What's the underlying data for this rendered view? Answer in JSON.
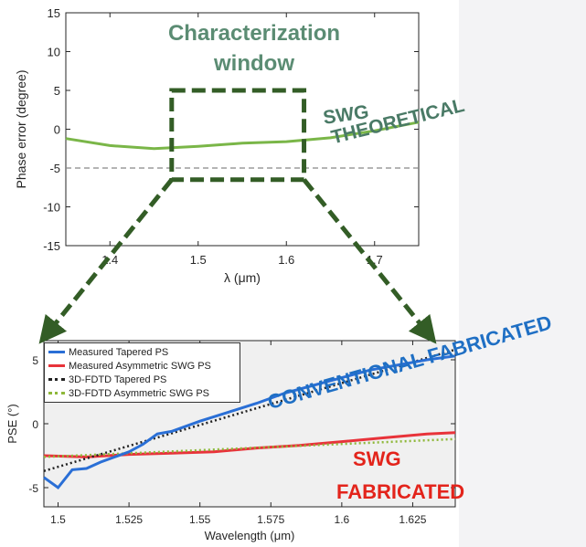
{
  "colors": {
    "theoretical": "#7ab648",
    "tapered_measured": "#2a6fd6",
    "asym_measured": "#e8333a",
    "tapered_fdtd": "#222222",
    "asym_fdtd": "#8fb83a",
    "window_box": "#335d26",
    "window_label": "#5b8c73",
    "swg_theoretical": "#4a7a66",
    "conventional_fabricated": "#1f6fc4",
    "swg_fabricated": "#e3241b"
  },
  "annotations": {
    "window_label_1": "Characterization",
    "window_label_2": "window",
    "swg_theoretical_1": "SWG",
    "swg_theoretical_2": "THEORETICAL",
    "conventional_fabricated": "CONVENTIONAL FABRICATED",
    "swg_fabricated_1": "SWG",
    "swg_fabricated_2": "FABRICATED"
  },
  "chart_data": [
    {
      "type": "line",
      "xlabel": "λ (μm)",
      "ylabel": "Phase error (degree)",
      "xlim": [
        1.35,
        1.75
      ],
      "ylim": [
        -15,
        15
      ],
      "xticks": [
        "1.4",
        "1.5",
        "1.6",
        "1.7"
      ],
      "yticks": [
        "-15",
        "-10",
        "-5",
        "0",
        "5",
        "10",
        "15"
      ],
      "grid": false,
      "series": [
        {
          "x": [
            1.35,
            1.4,
            1.45,
            1.5,
            1.55,
            1.6,
            1.65,
            1.7,
            1.75
          ],
          "y": [
            -1.2,
            -2.1,
            -2.5,
            -2.2,
            -1.8,
            -1.6,
            -1.1,
            -0.2,
            0.9
          ]
        }
      ],
      "reference_line_y": -5,
      "highlight_window_x": [
        1.47,
        1.62
      ]
    },
    {
      "type": "line",
      "xlabel": "Wavelength (μm)",
      "ylabel": "PSE (°)",
      "xlim": [
        1.495,
        1.64
      ],
      "ylim": [
        -6.5,
        6.5
      ],
      "xticks": [
        "1.5",
        "1.525",
        "1.55",
        "1.575",
        "1.6",
        "1.625"
      ],
      "yticks": [
        "-5",
        "0",
        "5"
      ],
      "legend_position": "top-left",
      "series": [
        {
          "name": "Measured Tapered PS",
          "x": [
            1.495,
            1.5,
            1.505,
            1.51,
            1.515,
            1.52,
            1.525,
            1.53,
            1.535,
            1.54,
            1.545,
            1.55,
            1.56,
            1.57,
            1.58,
            1.59,
            1.6,
            1.61,
            1.62,
            1.63,
            1.64
          ],
          "y": [
            -4.2,
            -5.0,
            -3.6,
            -3.5,
            -3.0,
            -2.6,
            -2.2,
            -1.6,
            -0.8,
            -0.6,
            -0.2,
            0.2,
            0.9,
            1.6,
            2.4,
            3.0,
            3.6,
            4.2,
            4.6,
            5.0,
            5.3
          ]
        },
        {
          "name": "Measured Asymmetric SWG PS",
          "x": [
            1.495,
            1.51,
            1.525,
            1.54,
            1.555,
            1.57,
            1.585,
            1.6,
            1.615,
            1.63,
            1.64
          ],
          "y": [
            -2.5,
            -2.6,
            -2.4,
            -2.3,
            -2.2,
            -1.9,
            -1.7,
            -1.4,
            -1.1,
            -0.8,
            -0.7
          ]
        },
        {
          "name": "3D-FDTD Tapered PS",
          "x": [
            1.495,
            1.64
          ],
          "y": [
            -3.7,
            5.8
          ]
        },
        {
          "name": "3D-FDTD Asymmetric SWG PS",
          "x": [
            1.495,
            1.64
          ],
          "y": [
            -2.6,
            -1.2
          ]
        }
      ]
    }
  ]
}
